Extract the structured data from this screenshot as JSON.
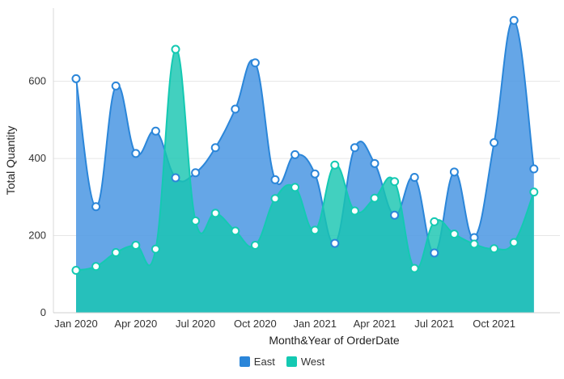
{
  "chart_data": {
    "type": "area",
    "xlabel": "Month&Year of OrderDate",
    "ylabel": "Total Quantity",
    "ylim": [
      0,
      790
    ],
    "yticks": [
      0,
      200,
      400,
      600
    ],
    "grid": "horizontal",
    "legend_position": "bottom",
    "x": [
      "2020-01",
      "2020-02",
      "2020-03",
      "2020-04",
      "2020-05",
      "2020-06",
      "2020-07",
      "2020-08",
      "2020-09",
      "2020-10",
      "2020-11",
      "2020-12",
      "2021-01",
      "2021-02",
      "2021-03",
      "2021-04",
      "2021-05",
      "2021-06",
      "2021-07",
      "2021-08",
      "2021-09",
      "2021-10",
      "2021-11",
      "2021-12"
    ],
    "xtick_labels": [
      {
        "month": "2020-01",
        "label": "Jan 2020"
      },
      {
        "month": "2020-04",
        "label": "Apr 2020"
      },
      {
        "month": "2020-07",
        "label": "Jul 2020"
      },
      {
        "month": "2020-10",
        "label": "Oct 2020"
      },
      {
        "month": "2021-01",
        "label": "Jan 2021"
      },
      {
        "month": "2021-04",
        "label": "Apr 2021"
      },
      {
        "month": "2021-07",
        "label": "Jul 2021"
      },
      {
        "month": "2021-10",
        "label": "Oct 2021"
      }
    ],
    "series": [
      {
        "name": "East",
        "color": "#2b86d9",
        "fill": "#4a97e3",
        "values": [
          607,
          275,
          588,
          413,
          471,
          350,
          363,
          428,
          528,
          648,
          345,
          410,
          360,
          180,
          428,
          387,
          253,
          351,
          155,
          365,
          195,
          441,
          758,
          373
        ]
      },
      {
        "name": "West",
        "color": "#14c9b2",
        "fill": "#19c6b1",
        "values": [
          110,
          120,
          156,
          175,
          165,
          683,
          238,
          258,
          212,
          175,
          296,
          325,
          214,
          383,
          264,
          297,
          340,
          115,
          236,
          204,
          178,
          166,
          182,
          313
        ]
      }
    ]
  }
}
